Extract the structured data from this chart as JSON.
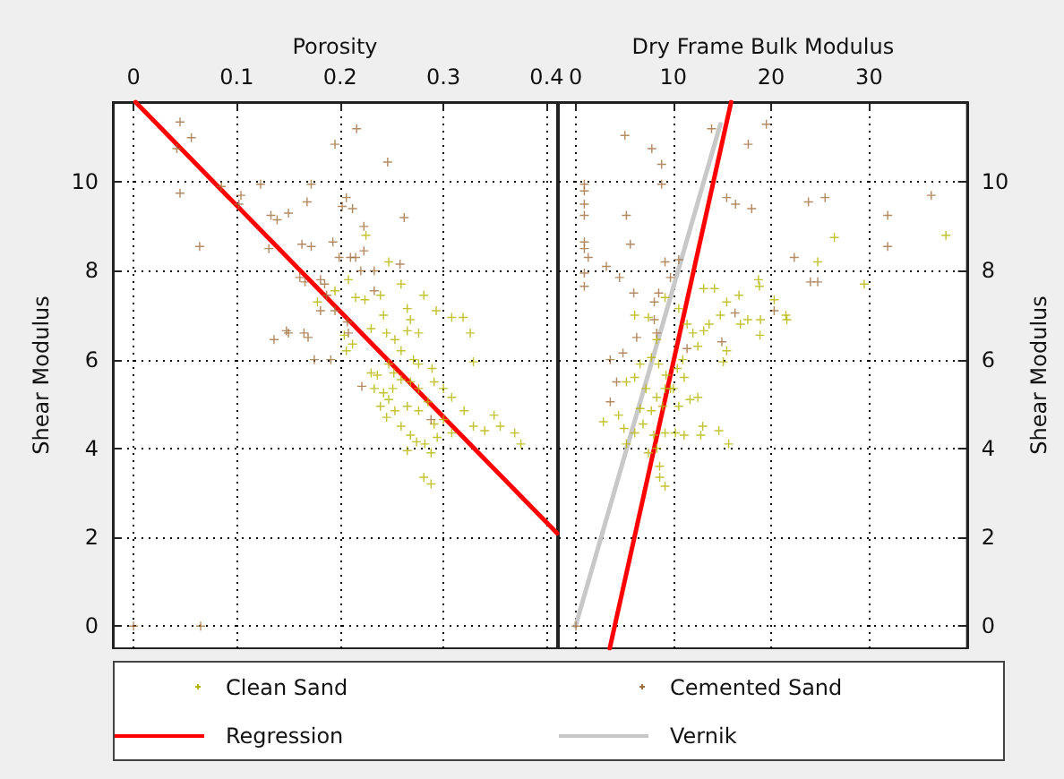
{
  "chart_data": [
    {
      "type": "scatter",
      "xlabel": "Porosity",
      "ylabel": "Shear Modulus",
      "xlim": [
        -0.02,
        0.41
      ],
      "ylim": [
        -0.5,
        11.8
      ],
      "xticks": [
        0,
        0.1,
        0.2,
        0.3,
        0.4
      ],
      "yticks": [
        0,
        2,
        4,
        6,
        8,
        10
      ],
      "grid": true,
      "marker": "cross",
      "legend": "bottom",
      "series": [
        {
          "name": "Clean Sand",
          "color": "#b4b400",
          "x": [
            0.225,
            0.208,
            0.215,
            0.224,
            0.239,
            0.247,
            0.259,
            0.281,
            0.265,
            0.293,
            0.308,
            0.319,
            0.326,
            0.329,
            0.206,
            0.212,
            0.23,
            0.242,
            0.245,
            0.253,
            0.265,
            0.268,
            0.276,
            0.259,
            0.271,
            0.247,
            0.236,
            0.233,
            0.242,
            0.251,
            0.259,
            0.268,
            0.276,
            0.291,
            0.3,
            0.308,
            0.32,
            0.329,
            0.34,
            0.349,
            0.355,
            0.369,
            0.375,
            0.239,
            0.253,
            0.265,
            0.276,
            0.285,
            0.291,
            0.3,
            0.308,
            0.259,
            0.268,
            0.274,
            0.282,
            0.288,
            0.265,
            0.281,
            0.288,
            0.294,
            0.247,
            0.245,
            0.23,
            0.252,
            0.276,
            0.289,
            0.204,
            0.178,
            0.195
          ],
          "values": [
            8.8,
            7.8,
            7.4,
            7.35,
            7.45,
            8.2,
            7.7,
            7.45,
            7.15,
            7.1,
            6.95,
            6.95,
            6.6,
            5.95,
            6.2,
            6.35,
            6.7,
            7.0,
            6.6,
            6.45,
            6.65,
            6.9,
            6.6,
            6.2,
            6.0,
            5.9,
            5.65,
            5.35,
            5.25,
            5.35,
            5.55,
            5.5,
            5.35,
            5.5,
            5.35,
            5.15,
            4.85,
            4.5,
            4.4,
            4.75,
            4.5,
            4.35,
            4.1,
            4.95,
            4.85,
            4.95,
            4.85,
            5.05,
            4.55,
            4.65,
            4.35,
            4.5,
            4.3,
            4.15,
            4.1,
            3.9,
            3.95,
            3.35,
            3.2,
            4.25,
            5.1,
            4.7,
            5.7,
            5.7,
            5.9,
            5.8,
            6.55,
            7.3,
            7.55
          ]
        },
        {
          "name": "Cemented Sand",
          "color": "#a06e3c",
          "x": [
            0.045,
            0.056,
            0.042,
            0.045,
            0.064,
            0.085,
            0.104,
            0.102,
            0.123,
            0.133,
            0.139,
            0.15,
            0.131,
            0.136,
            0.148,
            0.15,
            0.165,
            0.169,
            0.175,
            0.191,
            0.163,
            0.172,
            0.168,
            0.172,
            0.193,
            0.195,
            0.216,
            0.246,
            0.206,
            0.202,
            0.212,
            0.223,
            0.223,
            0.21,
            0.215,
            0.199,
            0.262,
            0.258,
            0.233,
            0.22,
            0.161,
            0.166,
            0.181,
            0.185,
            0.187,
            0.181,
            0.195,
            0.207,
            0.208,
            0.221,
            0.288,
            0.0,
            0.065,
            0.233
          ],
          "values": [
            11.35,
            11.0,
            10.75,
            9.75,
            8.55,
            9.9,
            9.7,
            9.5,
            9.95,
            9.25,
            9.15,
            9.3,
            8.5,
            6.45,
            6.65,
            6.6,
            6.6,
            6.5,
            6.0,
            6.0,
            8.6,
            8.55,
            9.55,
            9.95,
            8.65,
            10.85,
            11.2,
            10.45,
            9.65,
            9.45,
            9.4,
            9.0,
            8.45,
            8.3,
            8.3,
            8.3,
            9.2,
            8.15,
            8.0,
            8.0,
            7.85,
            7.75,
            7.8,
            7.7,
            7.45,
            7.1,
            7.1,
            6.85,
            6.6,
            5.4,
            4.65,
            0,
            0,
            7.55
          ]
        },
        {
          "name": "Regression",
          "type": "line",
          "marker": "none",
          "color": "#ff0000",
          "x": [
            0.002,
            0.41
          ],
          "values": [
            11.8,
            2.09
          ]
        }
      ]
    },
    {
      "type": "scatter",
      "xlabel": "Dry Frame Bulk Modulus",
      "ylabel": "Shear Modulus",
      "xlim": [
        -1.7,
        40
      ],
      "ylim": [
        -0.5,
        11.8
      ],
      "xticks": [
        0,
        10,
        20,
        30
      ],
      "yticks": [
        0,
        2,
        4,
        6,
        8,
        10
      ],
      "grid": true,
      "marker": "cross",
      "legend": "bottom",
      "series": [
        {
          "name": "Clean Sand",
          "color": "#b4b400",
          "x": [
            26.45,
            24.75,
            29.5,
            37.85,
            18.7,
            18.8,
            20.3,
            18.9,
            21.5,
            21.6,
            18.85,
            17.6,
            16.7,
            15.45,
            14.2,
            13.1,
            14.8,
            15.45,
            15.1,
            14.65,
            15.65,
            13.0,
            12.8,
            12.0,
            13.1,
            13.65,
            12.5,
            11.4,
            10.55,
            9.15,
            7.45,
            6.05,
            8.3,
            6.6,
            5.2,
            6.05,
            7.2,
            8.3,
            9.25,
            10.4,
            11.1,
            10.0,
            8.9,
            10.55,
            11.7,
            12.5,
            7.75,
            6.9,
            6.05,
            5.2,
            8.0,
            9.15,
            10.2,
            11.1,
            8.3,
            7.45,
            8.6,
            8.6,
            9.15,
            2.85,
            4.4,
            4.95,
            6.6,
            9.7,
            9.15,
            10.95,
            8.5,
            7.75,
            16.85
          ],
          "values": [
            8.75,
            8.2,
            7.7,
            8.8,
            7.8,
            7.65,
            7.35,
            6.9,
            7.0,
            6.9,
            6.55,
            6.9,
            7.45,
            7.3,
            7.6,
            7.6,
            7.0,
            6.2,
            5.95,
            4.4,
            4.1,
            4.5,
            4.3,
            6.6,
            6.65,
            6.8,
            6.3,
            6.8,
            7.15,
            7.4,
            6.95,
            7.0,
            6.45,
            5.9,
            5.5,
            5.6,
            5.35,
            5.15,
            5.65,
            5.8,
            5.6,
            5.35,
            4.95,
            4.95,
            5.1,
            5.15,
            4.85,
            4.55,
            4.35,
            4.1,
            4.3,
            4.35,
            4.35,
            4.3,
            4.0,
            3.9,
            3.6,
            3.35,
            3.15,
            4.6,
            4.75,
            4.45,
            4.9,
            5.35,
            5.35,
            6.0,
            5.9,
            6.05,
            6.8
          ]
        },
        {
          "name": "Cemented Sand",
          "color": "#a06e3c",
          "x": [
            5.05,
            7.8,
            8.8,
            8.8,
            0.9,
            0.9,
            0.9,
            0.9,
            0.9,
            0.9,
            1.3,
            0.9,
            0.9,
            3.15,
            4.5,
            5.2,
            5.6,
            9.15,
            10.55,
            9.7,
            8.5,
            5.95,
            8.05,
            8.05,
            6.25,
            8.3,
            4.85,
            3.55,
            4.2,
            3.55,
            11.4,
            13.9,
            17.65,
            19.5,
            15.45,
            16.35,
            18.0,
            23.8,
            25.5,
            36.35,
            31.9,
            31.9,
            22.35,
            24.0,
            24.75,
            16.3,
            20.3,
            14.95,
            0.05
          ],
          "values": [
            11.05,
            10.75,
            10.4,
            9.95,
            9.95,
            9.8,
            9.5,
            9.25,
            8.65,
            8.5,
            8.3,
            7.95,
            7.65,
            8.1,
            7.85,
            9.25,
            8.6,
            8.2,
            8.25,
            7.85,
            7.5,
            7.5,
            7.3,
            6.9,
            6.5,
            6.6,
            6.15,
            6.0,
            5.5,
            5.05,
            6.25,
            11.2,
            10.85,
            11.3,
            9.65,
            9.5,
            9.4,
            9.55,
            9.65,
            9.7,
            9.25,
            8.55,
            8.3,
            7.75,
            7.75,
            7.05,
            7.1,
            6.4,
            0
          ]
        },
        {
          "name": "Regression",
          "type": "line",
          "marker": "none",
          "color": "#ff0000",
          "x": [
            3.5,
            15.9
          ],
          "values": [
            -0.5,
            11.8
          ]
        },
        {
          "name": "Vernik",
          "type": "line",
          "marker": "none",
          "color": "#c8c8c8",
          "x": [
            0,
            14.8
          ],
          "values": [
            0,
            11.3
          ]
        }
      ]
    }
  ]
}
